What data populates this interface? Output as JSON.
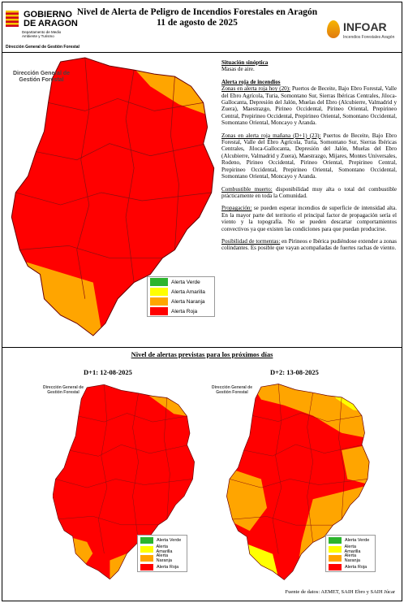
{
  "header": {
    "logo": "GOBIERNO DE ARAGON",
    "department": "Departamento de Medio Ambiente y Turismo",
    "title": "Nivel de Alerta de Peligro de Incendios Forestales en Aragón",
    "date": "11 de agosto de 2025",
    "brand": "INFOAR",
    "brand_subtitle": "Incendios Forestales Aragón",
    "directorate": "Dirección General de Gestión Forestal"
  },
  "main_map": {
    "label": "Dirección General de Gestión Forestal",
    "legend": [
      "Alerta Verde",
      "Alerta Amarilla",
      "Alerta Naranja",
      "Alerta Roja"
    ]
  },
  "report": {
    "synoptic": {
      "heading": "Situación sinóptica",
      "text": "Masas de aire."
    },
    "alert_heading": "Alerta roja de incendios",
    "paragraphs": [
      {
        "lead": "Zonas en alerta roja hoy (20):",
        "text": " Puertos de Beceite, Bajo Ebro Forestal, Valle del Ebro Agrícola, Turia, Somontano Sur, Sierras Ibéricas Centrales, Jiloca-Gallocanta, Depresión del Jalón, Muelas del Ebro (Alcubierre, Valmadrid y Zuera), Maestrazgo, Pirineo Occidental, Pirineo Oriental, Prepirineo Central, Prepirineo Occidental, Prepirineo Oriental, Somontano Occidental, Somontano Oriental, Moncayo y Aranda."
      },
      {
        "lead": "Zonas en alerta roja mañana (D+1) (23):",
        "text": " Puertos de Beceite, Bajo Ebro Forestal, Valle del Ebro Agrícola, Turia, Somontano Sur, Sierras Ibéricas Centrales, Jiloca-Gallocanta, Depresión del Jalón, Muelas del Ebro (Alcubierre, Valmadrid y Zuera), Maestrazgo, Mijares, Montes Universales, Rodeno, Pirineo Occidental, Pirineo Oriental, Prepirineo Central, Prepirineo Occidental, Prepirineo Oriental, Somontano Occidental, Somontano Oriental, Moncayo y Aranda."
      },
      {
        "lead": "Combustible muerto:",
        "text": " disponibilidad muy alta o total del combustible prácticamente en toda la Comunidad."
      },
      {
        "lead": "Propagación:",
        "text": " se pueden esperar incendios de superficie de intensidad alta. En la mayor parte del territorio el principal factor de propagación sería el viento y la topografía. No se pueden descartar comportamientos convectivos ya que existen las condiciones para que puedan producirse."
      },
      {
        "lead": "Posibilidad de tormentas:",
        "text": " en Pirineos e Ibérica pudiéndose extender a zonas colindantes. Es posible que vayan acompañadas de fuertes rachas de viento."
      }
    ]
  },
  "forecast": {
    "title": "Nivel de alertas previstas para los próximos días",
    "maps": [
      {
        "date": "D+1: 12-08-2025",
        "label": "Dirección General de Gestión Forestal",
        "legend": [
          "Alerta Verde",
          "Alerta Amarilla",
          "Alerta Naranja",
          "Alerta Roja"
        ]
      },
      {
        "date": "D+2: 13-08-2025",
        "label": "Dirección General de Gestión Forestal",
        "legend": [
          "Alerta Verde",
          "Alerta Amarilla",
          "Alerta Naranja",
          "Alerta Roja"
        ]
      }
    ]
  },
  "footer": {
    "source": "Fuente de datos: AEMET, SAIH Ebro y SAIH Júcar"
  }
}
